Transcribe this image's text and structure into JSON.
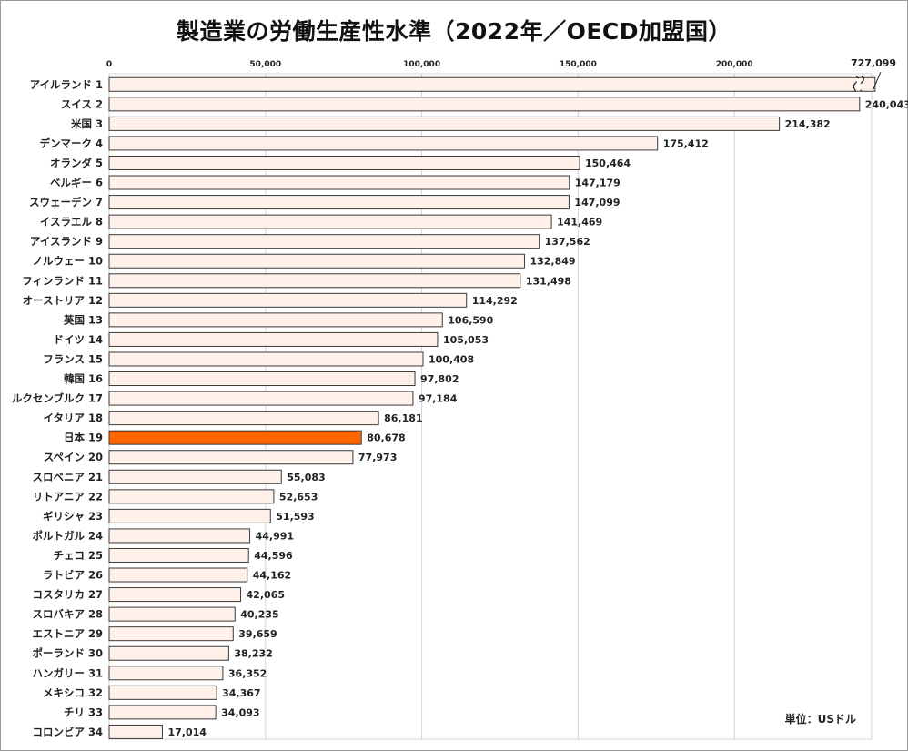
{
  "title": "製造業の労働生産性水準（2022年／OECD加盟国）",
  "unit_note": "単位：USドル",
  "chart_data": {
    "type": "bar",
    "orientation": "horizontal",
    "title": "製造業の労働生産性水準（2022年／OECD加盟国）",
    "xlim": [
      0,
      245000
    ],
    "axis_break": {
      "category": "アイルランド 1",
      "actual_value": 727099
    },
    "ticks": [
      {
        "value": 0,
        "label": "0"
      },
      {
        "value": 50000,
        "label": "50,000"
      },
      {
        "value": 100000,
        "label": "100,000"
      },
      {
        "value": 150000,
        "label": "150,000"
      },
      {
        "value": 200000,
        "label": "200,000"
      }
    ],
    "highlight_color": "#ff6600",
    "bar_color": "#fff1ea",
    "categories": [
      "アイルランド 1",
      "スイス 2",
      "米国 3",
      "デンマーク 4",
      "オランダ 5",
      "ベルギー 6",
      "スウェーデン 7",
      "イスラエル 8",
      "アイスランド 9",
      "ノルウェー 10",
      "フィンランド 11",
      "オーストリア 12",
      "英国 13",
      "ドイツ 14",
      "フランス 15",
      "韓国 16",
      "ルクセンブルク 17",
      "イタリア 18",
      "日本 19",
      "スペイン 20",
      "スロベニア 21",
      "リトアニア 22",
      "ギリシャ 23",
      "ポルトガル 24",
      "チェコ 25",
      "ラトビア 26",
      "コスタリカ 27",
      "スロバキア 28",
      "エストニア 29",
      "ポーランド 30",
      "ハンガリー 31",
      "メキシコ 32",
      "チリ 33",
      "コロンビア 34"
    ],
    "values": [
      727099,
      240043,
      214382,
      175412,
      150464,
      147179,
      147099,
      141469,
      137562,
      132849,
      131498,
      114292,
      106590,
      105053,
      100408,
      97802,
      97184,
      86181,
      80678,
      77973,
      55083,
      52653,
      51593,
      44991,
      44596,
      44162,
      42065,
      40235,
      39659,
      38232,
      36352,
      34367,
      34093,
      17014
    ],
    "value_labels": [
      "727,099",
      "240,043",
      "214,382",
      "175,412",
      "150,464",
      "147,179",
      "147,099",
      "141,469",
      "137,562",
      "132,849",
      "131,498",
      "114,292",
      "106,590",
      "105,053",
      "100,408",
      "97,802",
      "97,184",
      "86,181",
      "80,678",
      "77,973",
      "55,083",
      "52,653",
      "51,593",
      "44,991",
      "44,596",
      "44,162",
      "42,065",
      "40,235",
      "39,659",
      "38,232",
      "36,352",
      "34,367",
      "34,093",
      "17,014"
    ],
    "highlight": [
      false,
      false,
      false,
      false,
      false,
      false,
      false,
      false,
      false,
      false,
      false,
      false,
      false,
      false,
      false,
      false,
      false,
      false,
      true,
      false,
      false,
      false,
      false,
      false,
      false,
      false,
      false,
      false,
      false,
      false,
      false,
      false,
      false,
      false
    ]
  }
}
